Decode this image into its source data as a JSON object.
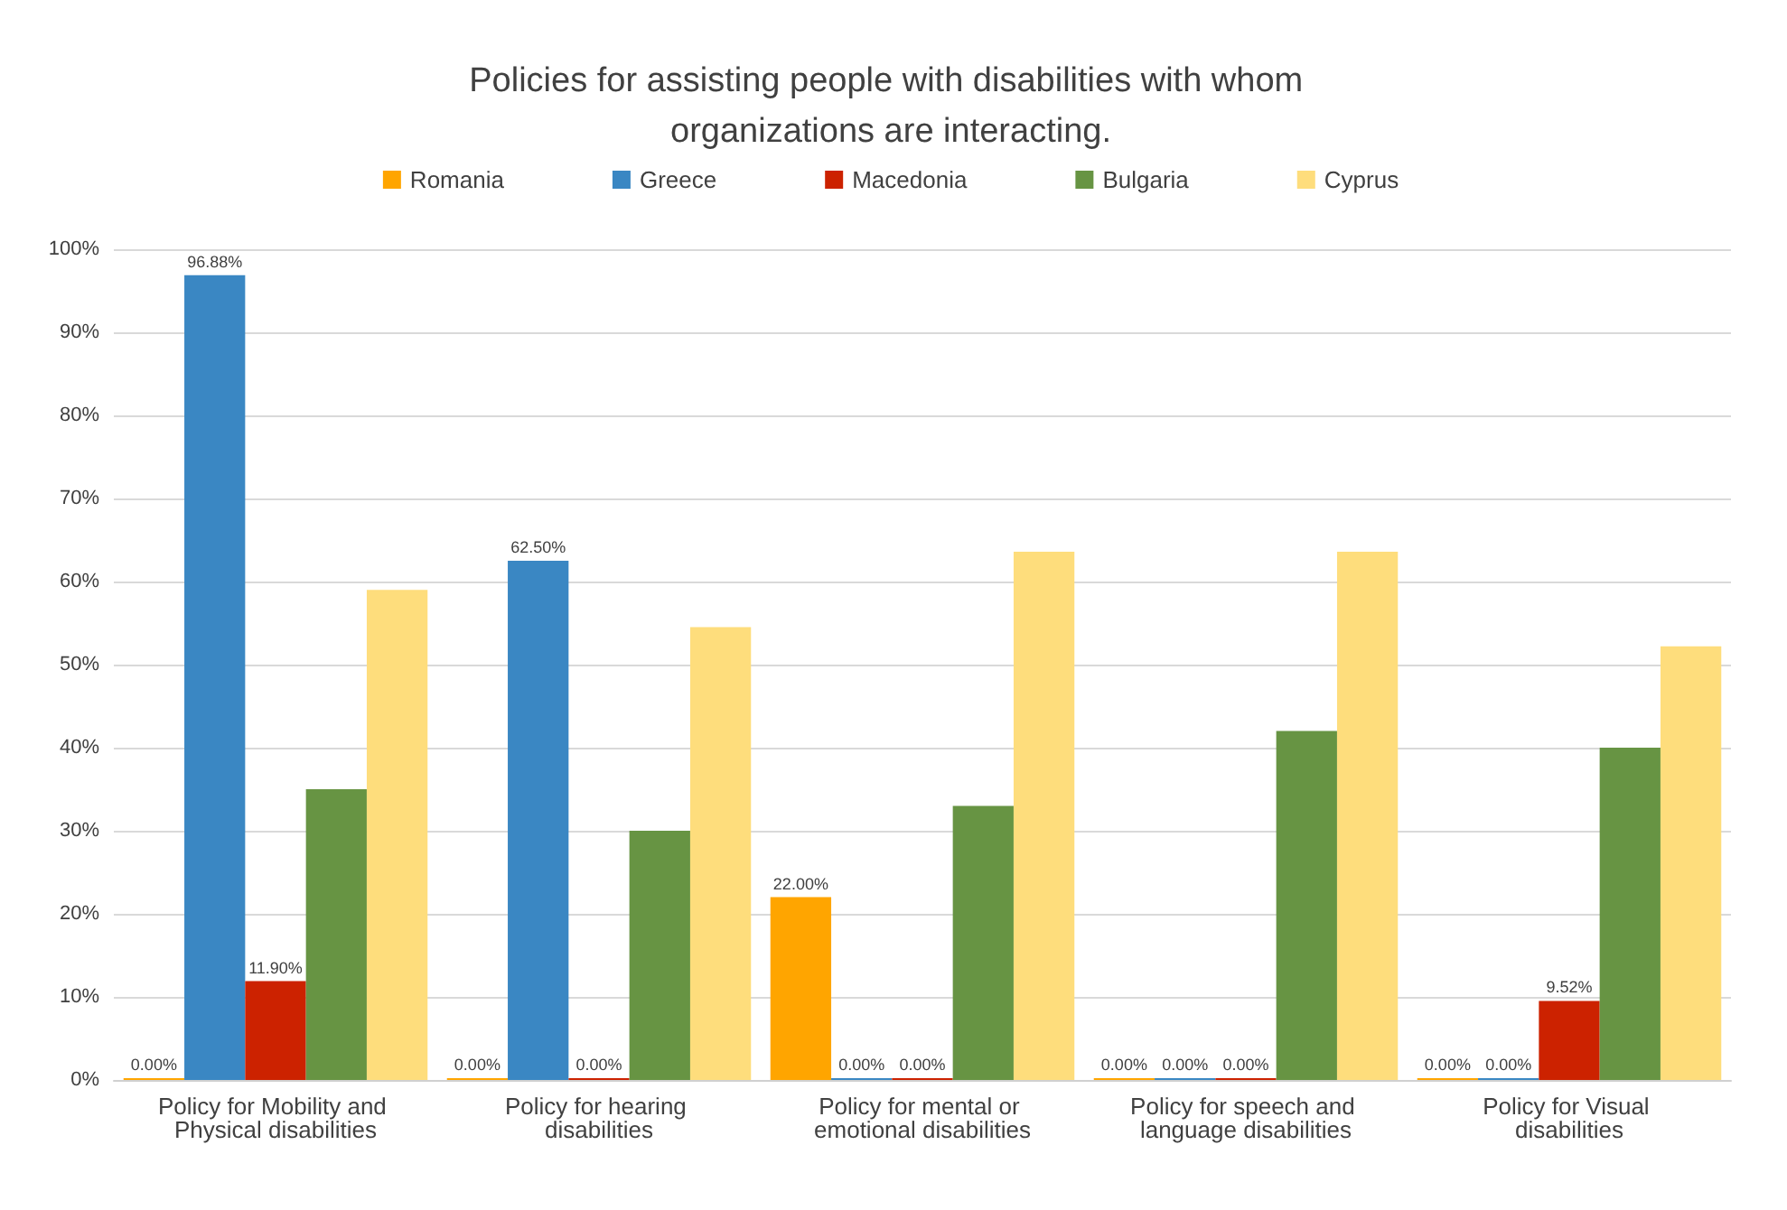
{
  "chart_data": {
    "type": "bar",
    "title": "Policies for assisting people with disabilities with whom organizations are interacting.",
    "categories": [
      "Policy for Mobility and Physical disabilities",
      "Policy for hearing disabilities",
      "Policy for mental or emotional disabilities",
      "Policy for speech and language disabilities",
      "Policy for Visual disabilities"
    ],
    "series": [
      {
        "name": "Romania",
        "color": "#ffa500",
        "values": [
          0,
          0,
          22,
          0,
          0
        ],
        "value_labels": [
          "0.00%",
          "0.00%",
          "22.00%",
          "0.00%",
          "0.00%"
        ]
      },
      {
        "name": "Greece",
        "color": "#3a87c3",
        "values": [
          96.88,
          62.5,
          0,
          0,
          0
        ],
        "value_labels": [
          "96.88%",
          "62.50%",
          "0.00%",
          "0.00%",
          "0.00%"
        ]
      },
      {
        "name": "Macedonia",
        "color": "#cc2200",
        "values": [
          11.9,
          0,
          0,
          0,
          9.52
        ],
        "value_labels": [
          "11.90%",
          "0.00%",
          "0.00%",
          "0.00%",
          "9.52%"
        ]
      },
      {
        "name": "Bulgaria",
        "color": "#679443",
        "values": [
          35,
          30,
          33,
          42,
          40
        ]
      },
      {
        "name": "Cyprus",
        "color": "#fedd7c",
        "values": [
          59,
          54.5,
          63.6,
          63.6,
          52.2
        ]
      }
    ],
    "ylim": [
      0,
      100
    ],
    "yticks": [
      {
        "value": 0,
        "label": "0%"
      },
      {
        "value": 10,
        "label": "10%"
      },
      {
        "value": 20,
        "label": "20%"
      },
      {
        "value": 30,
        "label": "30%"
      },
      {
        "value": 40,
        "label": "40%"
      },
      {
        "value": 50,
        "label": "50%"
      },
      {
        "value": 60,
        "label": "60%"
      },
      {
        "value": 70,
        "label": "70%"
      },
      {
        "value": 80,
        "label": "80%"
      },
      {
        "value": 90,
        "label": "90%"
      },
      {
        "value": 100,
        "label": "100%"
      }
    ],
    "grid": "y",
    "legend": "top"
  }
}
